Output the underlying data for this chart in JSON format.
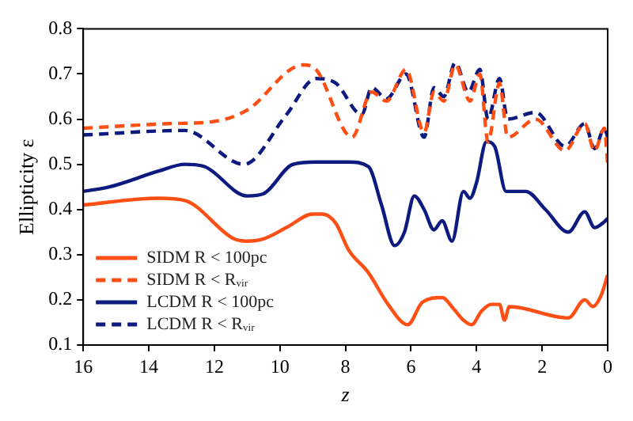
{
  "chart_data": {
    "type": "line",
    "xlabel": "z",
    "ylabel": "Ellipticity ε",
    "xlim": [
      16,
      0
    ],
    "xticks": [
      16,
      14,
      12,
      10,
      8,
      6,
      4,
      2,
      0
    ],
    "ylim": [
      0.1,
      0.8
    ],
    "yticks": [
      0.1,
      0.2,
      0.3,
      0.4,
      0.5,
      0.6,
      0.7,
      0.8
    ],
    "grid": false,
    "legend": "bottom left",
    "marker": "none",
    "series": [
      {
        "name": "SIDM R < 100pc",
        "color": "#ff4f14",
        "line_style": "solid",
        "x": [
          16,
          13.7,
          12.9,
          11.4,
          11,
          10.5,
          9.8,
          9,
          8.7,
          8.3,
          7.9,
          7.3,
          6.7,
          6.1,
          5.65,
          5.05,
          4.7,
          4.4,
          4.15,
          3.85,
          3.55,
          3.3,
          3.15,
          3,
          1.2,
          0.7,
          0.45,
          0.2,
          0
        ],
        "values": [
          0.41,
          0.425,
          0.42,
          0.335,
          0.33,
          0.335,
          0.36,
          0.39,
          0.39,
          0.37,
          0.31,
          0.26,
          0.19,
          0.145,
          0.195,
          0.205,
          0.18,
          0.155,
          0.145,
          0.175,
          0.19,
          0.19,
          0.155,
          0.185,
          0.16,
          0.2,
          0.185,
          0.21,
          0.255
        ]
      },
      {
        "name": "SIDM R < Rᵥᵢᵣ",
        "color": "#ff4f14",
        "line_style": "dashed",
        "x": [
          16,
          13.4,
          12,
          11,
          9.3,
          8.9,
          7.8,
          7.2,
          6.75,
          6.15,
          5.6,
          5.3,
          5,
          4.65,
          4.2,
          3.9,
          3.65,
          3.3,
          3.05,
          2.2,
          1.3,
          0.7,
          0.4,
          0.1,
          0
        ],
        "values": [
          0.58,
          0.59,
          0.595,
          0.62,
          0.72,
          0.71,
          0.56,
          0.66,
          0.64,
          0.71,
          0.57,
          0.66,
          0.64,
          0.72,
          0.64,
          0.7,
          0.55,
          0.68,
          0.56,
          0.6,
          0.53,
          0.59,
          0.53,
          0.58,
          0.5
        ]
      },
      {
        "name": "LCDM R < 100pc",
        "color": "#0d1a80",
        "line_style": "solid",
        "x": [
          16,
          15.2,
          13.7,
          12.9,
          12.3,
          11,
          10.5,
          9.6,
          8.9,
          7.9,
          7.3,
          6.9,
          6.5,
          6.2,
          5.9,
          5.6,
          5.3,
          5.05,
          4.75,
          4.4,
          4.2,
          4,
          3.7,
          3.45,
          3.1,
          2.5,
          1.9,
          1.2,
          0.7,
          0.4,
          0.15,
          0
        ],
        "values": [
          0.44,
          0.45,
          0.485,
          0.5,
          0.495,
          0.43,
          0.435,
          0.5,
          0.505,
          0.505,
          0.495,
          0.41,
          0.32,
          0.35,
          0.43,
          0.4,
          0.355,
          0.375,
          0.33,
          0.44,
          0.425,
          0.46,
          0.55,
          0.54,
          0.44,
          0.44,
          0.4,
          0.35,
          0.395,
          0.36,
          0.37,
          0.38
        ]
      },
      {
        "name": "LCDM R < Rᵥᵢᵣ",
        "color": "#0d1a80",
        "line_style": "dashed",
        "x": [
          16,
          12.9,
          11.1,
          9.8,
          8.9,
          8.3,
          7.5,
          7.2,
          6.75,
          6.15,
          5.6,
          5.3,
          5,
          4.65,
          4.25,
          3.9,
          3.65,
          3.3,
          3.05,
          2.2,
          1.3,
          0.7,
          0.4,
          0.1,
          0
        ],
        "values": [
          0.565,
          0.575,
          0.5,
          0.61,
          0.69,
          0.68,
          0.61,
          0.67,
          0.645,
          0.7,
          0.56,
          0.67,
          0.65,
          0.725,
          0.66,
          0.71,
          0.6,
          0.69,
          0.6,
          0.615,
          0.54,
          0.59,
          0.535,
          0.58,
          0.56
        ]
      }
    ]
  }
}
